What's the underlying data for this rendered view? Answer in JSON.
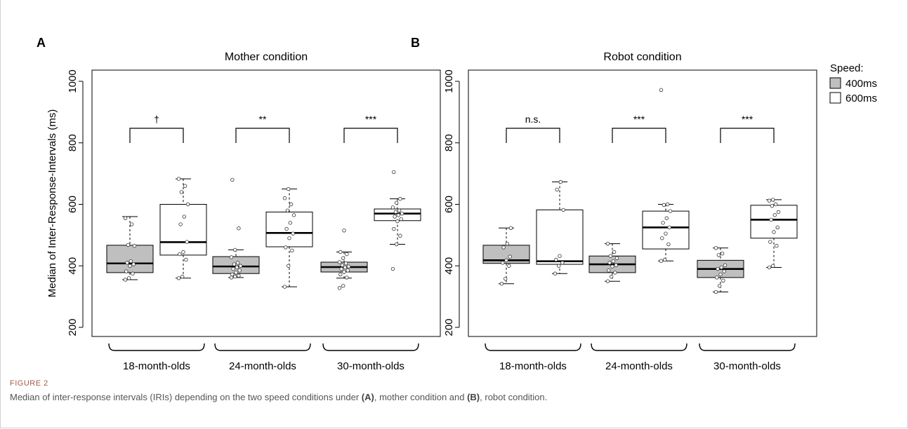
{
  "figure": {
    "label": "FIGURE 2",
    "caption_parts": [
      "Median of inter-response intervals (IRIs) depending on the two speed conditions under ",
      "(A)",
      ", mother condition and ",
      "(B)",
      ", robot condition."
    ]
  },
  "legend": {
    "title": "Speed:",
    "items": [
      {
        "label": "400ms",
        "color": "#bfbfbf"
      },
      {
        "label": "600ms",
        "color": "#ffffff"
      }
    ]
  },
  "chart_data": [
    {
      "type": "box",
      "panel": "A",
      "title": "Mother condition",
      "ylabel": "Median of Inter-Response-Intervals (ms)",
      "yticks": [
        200,
        400,
        600,
        800,
        1000
      ],
      "ylim": [
        170,
        1030
      ],
      "groups": [
        "18-month-olds",
        "24-month-olds",
        "30-month-olds"
      ],
      "boxes": [
        {
          "group": "18-month-olds",
          "speed": "400ms",
          "whisker_low": 355,
          "q1": 378,
          "median": 408,
          "q3": 467,
          "whisker_high": 560,
          "points": [
            355,
            360,
            375,
            382,
            400,
            405,
            410,
            415,
            465,
            468,
            535,
            555
          ]
        },
        {
          "group": "18-month-olds",
          "speed": "600ms",
          "whisker_low": 360,
          "q1": 435,
          "median": 477,
          "q3": 600,
          "whisker_high": 683,
          "points": [
            360,
            365,
            420,
            438,
            445,
            478,
            535,
            560,
            600,
            640,
            660,
            683
          ]
        },
        {
          "group": "24-month-olds",
          "speed": "400ms",
          "whisker_low": 362,
          "q1": 375,
          "median": 398,
          "q3": 430,
          "whisker_high": 452,
          "points": [
            362,
            365,
            368,
            372,
            378,
            385,
            390,
            395,
            400,
            405,
            410,
            428,
            452,
            522,
            680
          ]
        },
        {
          "group": "24-month-olds",
          "speed": "600ms",
          "whisker_low": 332,
          "q1": 462,
          "median": 507,
          "q3": 575,
          "whisker_high": 650,
          "points": [
            332,
            400,
            450,
            460,
            490,
            505,
            520,
            540,
            565,
            580,
            600,
            620,
            650
          ]
        },
        {
          "group": "30-month-olds",
          "speed": "400ms",
          "whisker_low": 360,
          "q1": 380,
          "median": 396,
          "q3": 412,
          "whisker_high": 445,
          "points": [
            328,
            335,
            362,
            372,
            380,
            385,
            390,
            395,
            398,
            402,
            408,
            412,
            425,
            438,
            445,
            515
          ]
        },
        {
          "group": "30-month-olds",
          "speed": "600ms",
          "whisker_low": 470,
          "q1": 547,
          "median": 570,
          "q3": 585,
          "whisker_high": 618,
          "points": [
            390,
            470,
            498,
            520,
            545,
            552,
            560,
            565,
            570,
            575,
            580,
            590,
            605,
            618,
            705
          ]
        }
      ],
      "significance": [
        "†",
        "**",
        "***"
      ]
    },
    {
      "type": "box",
      "panel": "B",
      "title": "Robot condition",
      "ylabel": "",
      "yticks": [
        200,
        400,
        600,
        800,
        1000
      ],
      "ylim": [
        170,
        1030
      ],
      "groups": [
        "18-month-olds",
        "24-month-olds",
        "30-month-olds"
      ],
      "boxes": [
        {
          "group": "18-month-olds",
          "speed": "400ms",
          "whisker_low": 342,
          "q1": 408,
          "median": 418,
          "q3": 467,
          "whisker_high": 523,
          "points": [
            342,
            358,
            400,
            410,
            418,
            430,
            460,
            472,
            523
          ]
        },
        {
          "group": "18-month-olds",
          "speed": "600ms",
          "whisker_low": 375,
          "q1": 405,
          "median": 415,
          "q3": 582,
          "whisker_high": 673,
          "points": [
            375,
            400,
            410,
            420,
            432,
            582,
            648,
            673
          ]
        },
        {
          "group": "24-month-olds",
          "speed": "400ms",
          "whisker_low": 350,
          "q1": 378,
          "median": 405,
          "q3": 432,
          "whisker_high": 472,
          "points": [
            350,
            365,
            378,
            385,
            398,
            402,
            410,
            415,
            425,
            432,
            445,
            472
          ]
        },
        {
          "group": "24-month-olds",
          "speed": "600ms",
          "whisker_low": 416,
          "q1": 455,
          "median": 525,
          "q3": 578,
          "whisker_high": 600,
          "points": [
            416,
            420,
            470,
            490,
            505,
            525,
            540,
            555,
            578,
            598,
            600,
            972
          ]
        },
        {
          "group": "30-month-olds",
          "speed": "400ms",
          "whisker_low": 315,
          "q1": 362,
          "median": 390,
          "q3": 418,
          "whisker_high": 458,
          "points": [
            315,
            335,
            352,
            362,
            372,
            382,
            390,
            395,
            402,
            435,
            440,
            458
          ]
        },
        {
          "group": "30-month-olds",
          "speed": "600ms",
          "whisker_low": 395,
          "q1": 490,
          "median": 550,
          "q3": 597,
          "whisker_high": 615,
          "points": [
            395,
            400,
            465,
            478,
            510,
            525,
            550,
            565,
            575,
            595,
            600,
            612,
            615
          ]
        }
      ],
      "significance": [
        "n.s.",
        "***",
        "***"
      ]
    }
  ]
}
